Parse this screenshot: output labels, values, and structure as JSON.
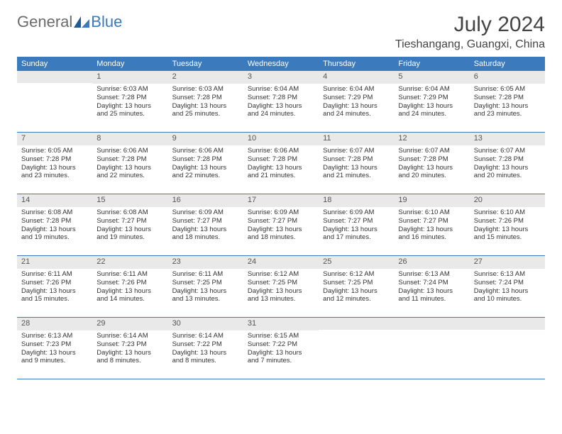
{
  "brand": {
    "part1": "General",
    "part2": "Blue"
  },
  "title": "July 2024",
  "location": "Tieshangang, Guangxi, China",
  "colors": {
    "header_bg": "#3a7abd",
    "daynum_bg": "#e9e9e9",
    "text": "#333333",
    "brand_gray": "#6b6b6b",
    "brand_blue": "#3a7abd"
  },
  "days_of_week": [
    "Sunday",
    "Monday",
    "Tuesday",
    "Wednesday",
    "Thursday",
    "Friday",
    "Saturday"
  ],
  "weeks": [
    [
      {
        "n": "",
        "sunrise": "",
        "sunset": "",
        "daylight": ""
      },
      {
        "n": "1",
        "sunrise": "Sunrise: 6:03 AM",
        "sunset": "Sunset: 7:28 PM",
        "daylight": "Daylight: 13 hours and 25 minutes."
      },
      {
        "n": "2",
        "sunrise": "Sunrise: 6:03 AM",
        "sunset": "Sunset: 7:28 PM",
        "daylight": "Daylight: 13 hours and 25 minutes."
      },
      {
        "n": "3",
        "sunrise": "Sunrise: 6:04 AM",
        "sunset": "Sunset: 7:28 PM",
        "daylight": "Daylight: 13 hours and 24 minutes."
      },
      {
        "n": "4",
        "sunrise": "Sunrise: 6:04 AM",
        "sunset": "Sunset: 7:29 PM",
        "daylight": "Daylight: 13 hours and 24 minutes."
      },
      {
        "n": "5",
        "sunrise": "Sunrise: 6:04 AM",
        "sunset": "Sunset: 7:29 PM",
        "daylight": "Daylight: 13 hours and 24 minutes."
      },
      {
        "n": "6",
        "sunrise": "Sunrise: 6:05 AM",
        "sunset": "Sunset: 7:28 PM",
        "daylight": "Daylight: 13 hours and 23 minutes."
      }
    ],
    [
      {
        "n": "7",
        "sunrise": "Sunrise: 6:05 AM",
        "sunset": "Sunset: 7:28 PM",
        "daylight": "Daylight: 13 hours and 23 minutes."
      },
      {
        "n": "8",
        "sunrise": "Sunrise: 6:06 AM",
        "sunset": "Sunset: 7:28 PM",
        "daylight": "Daylight: 13 hours and 22 minutes."
      },
      {
        "n": "9",
        "sunrise": "Sunrise: 6:06 AM",
        "sunset": "Sunset: 7:28 PM",
        "daylight": "Daylight: 13 hours and 22 minutes."
      },
      {
        "n": "10",
        "sunrise": "Sunrise: 6:06 AM",
        "sunset": "Sunset: 7:28 PM",
        "daylight": "Daylight: 13 hours and 21 minutes."
      },
      {
        "n": "11",
        "sunrise": "Sunrise: 6:07 AM",
        "sunset": "Sunset: 7:28 PM",
        "daylight": "Daylight: 13 hours and 21 minutes."
      },
      {
        "n": "12",
        "sunrise": "Sunrise: 6:07 AM",
        "sunset": "Sunset: 7:28 PM",
        "daylight": "Daylight: 13 hours and 20 minutes."
      },
      {
        "n": "13",
        "sunrise": "Sunrise: 6:07 AM",
        "sunset": "Sunset: 7:28 PM",
        "daylight": "Daylight: 13 hours and 20 minutes."
      }
    ],
    [
      {
        "n": "14",
        "sunrise": "Sunrise: 6:08 AM",
        "sunset": "Sunset: 7:28 PM",
        "daylight": "Daylight: 13 hours and 19 minutes."
      },
      {
        "n": "15",
        "sunrise": "Sunrise: 6:08 AM",
        "sunset": "Sunset: 7:27 PM",
        "daylight": "Daylight: 13 hours and 19 minutes."
      },
      {
        "n": "16",
        "sunrise": "Sunrise: 6:09 AM",
        "sunset": "Sunset: 7:27 PM",
        "daylight": "Daylight: 13 hours and 18 minutes."
      },
      {
        "n": "17",
        "sunrise": "Sunrise: 6:09 AM",
        "sunset": "Sunset: 7:27 PM",
        "daylight": "Daylight: 13 hours and 18 minutes."
      },
      {
        "n": "18",
        "sunrise": "Sunrise: 6:09 AM",
        "sunset": "Sunset: 7:27 PM",
        "daylight": "Daylight: 13 hours and 17 minutes."
      },
      {
        "n": "19",
        "sunrise": "Sunrise: 6:10 AM",
        "sunset": "Sunset: 7:27 PM",
        "daylight": "Daylight: 13 hours and 16 minutes."
      },
      {
        "n": "20",
        "sunrise": "Sunrise: 6:10 AM",
        "sunset": "Sunset: 7:26 PM",
        "daylight": "Daylight: 13 hours and 15 minutes."
      }
    ],
    [
      {
        "n": "21",
        "sunrise": "Sunrise: 6:11 AM",
        "sunset": "Sunset: 7:26 PM",
        "daylight": "Daylight: 13 hours and 15 minutes."
      },
      {
        "n": "22",
        "sunrise": "Sunrise: 6:11 AM",
        "sunset": "Sunset: 7:26 PM",
        "daylight": "Daylight: 13 hours and 14 minutes."
      },
      {
        "n": "23",
        "sunrise": "Sunrise: 6:11 AM",
        "sunset": "Sunset: 7:25 PM",
        "daylight": "Daylight: 13 hours and 13 minutes."
      },
      {
        "n": "24",
        "sunrise": "Sunrise: 6:12 AM",
        "sunset": "Sunset: 7:25 PM",
        "daylight": "Daylight: 13 hours and 13 minutes."
      },
      {
        "n": "25",
        "sunrise": "Sunrise: 6:12 AM",
        "sunset": "Sunset: 7:25 PM",
        "daylight": "Daylight: 13 hours and 12 minutes."
      },
      {
        "n": "26",
        "sunrise": "Sunrise: 6:13 AM",
        "sunset": "Sunset: 7:24 PM",
        "daylight": "Daylight: 13 hours and 11 minutes."
      },
      {
        "n": "27",
        "sunrise": "Sunrise: 6:13 AM",
        "sunset": "Sunset: 7:24 PM",
        "daylight": "Daylight: 13 hours and 10 minutes."
      }
    ],
    [
      {
        "n": "28",
        "sunrise": "Sunrise: 6:13 AM",
        "sunset": "Sunset: 7:23 PM",
        "daylight": "Daylight: 13 hours and 9 minutes."
      },
      {
        "n": "29",
        "sunrise": "Sunrise: 6:14 AM",
        "sunset": "Sunset: 7:23 PM",
        "daylight": "Daylight: 13 hours and 8 minutes."
      },
      {
        "n": "30",
        "sunrise": "Sunrise: 6:14 AM",
        "sunset": "Sunset: 7:22 PM",
        "daylight": "Daylight: 13 hours and 8 minutes."
      },
      {
        "n": "31",
        "sunrise": "Sunrise: 6:15 AM",
        "sunset": "Sunset: 7:22 PM",
        "daylight": "Daylight: 13 hours and 7 minutes."
      },
      {
        "n": "",
        "sunrise": "",
        "sunset": "",
        "daylight": ""
      },
      {
        "n": "",
        "sunrise": "",
        "sunset": "",
        "daylight": ""
      },
      {
        "n": "",
        "sunrise": "",
        "sunset": "",
        "daylight": ""
      }
    ]
  ]
}
